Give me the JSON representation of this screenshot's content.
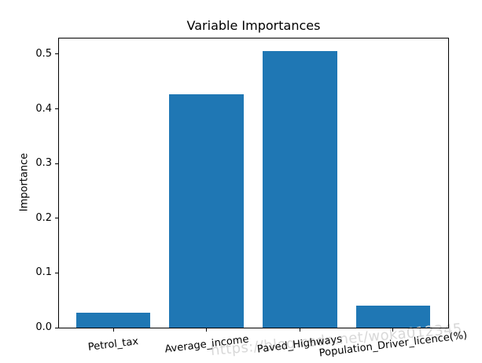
{
  "figure": {
    "watermark": "https://blog.csdn.net/woka012345"
  },
  "chart_data": {
    "type": "bar",
    "title": "Variable Importances",
    "xlabel": "",
    "ylabel": "Importance",
    "categories": [
      "Petrol_tax",
      "Average_income",
      "Paved_Highways",
      "Population_Driver_licence(%)"
    ],
    "values": [
      0.027,
      0.427,
      0.505,
      0.04
    ],
    "yticks": [
      0.0,
      0.1,
      0.2,
      0.3,
      0.4,
      0.5
    ],
    "ylim": [
      0,
      0.53
    ],
    "bar_color": "#1f77b4",
    "grid": false,
    "legend": false,
    "xtick_rotation_deg": 7,
    "watermark_color": "#d8d8d8"
  }
}
